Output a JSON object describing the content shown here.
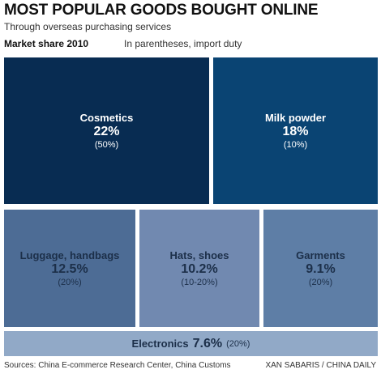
{
  "header": {
    "title": "MOST POPULAR GOODS BOUGHT ONLINE",
    "subtitle": "Through overseas purchasing services",
    "market_share_label": "Market share 2010",
    "note": "In parentheses, import duty"
  },
  "footer": {
    "sources": "Sources: China E-commerce Research Center, China Customs",
    "credit": "XAN SABARIS / CHINA DAILY"
  },
  "colors": {
    "cosmetics": "#082c52",
    "milk_powder": "#0a4473",
    "luggage": "#4d6c95",
    "hats": "#7189b0",
    "garments": "#5e7ea6",
    "electronics": "#91a9c7"
  },
  "chart_data": {
    "type": "treemap",
    "title": "MOST POPULAR GOODS BOUGHT ONLINE",
    "subtitle": "Through overseas purchasing services",
    "items": [
      {
        "name": "Cosmetics",
        "share": 22,
        "share_label": "22%",
        "duty_label": "(50%)"
      },
      {
        "name": "Milk powder",
        "share": 18,
        "share_label": "18%",
        "duty_label": "(10%)"
      },
      {
        "name": "Luggage, handbags",
        "share": 12.5,
        "share_label": "12.5%",
        "duty_label": "(20%)"
      },
      {
        "name": "Hats, shoes",
        "share": 10.2,
        "share_label": "10.2%",
        "duty_label": "(10-20%)"
      },
      {
        "name": "Garments",
        "share": 9.1,
        "share_label": "9.1%",
        "duty_label": "(20%)"
      },
      {
        "name": "Electronics",
        "share": 7.6,
        "share_label": "7.6%",
        "duty_label": "(20%)"
      }
    ]
  }
}
